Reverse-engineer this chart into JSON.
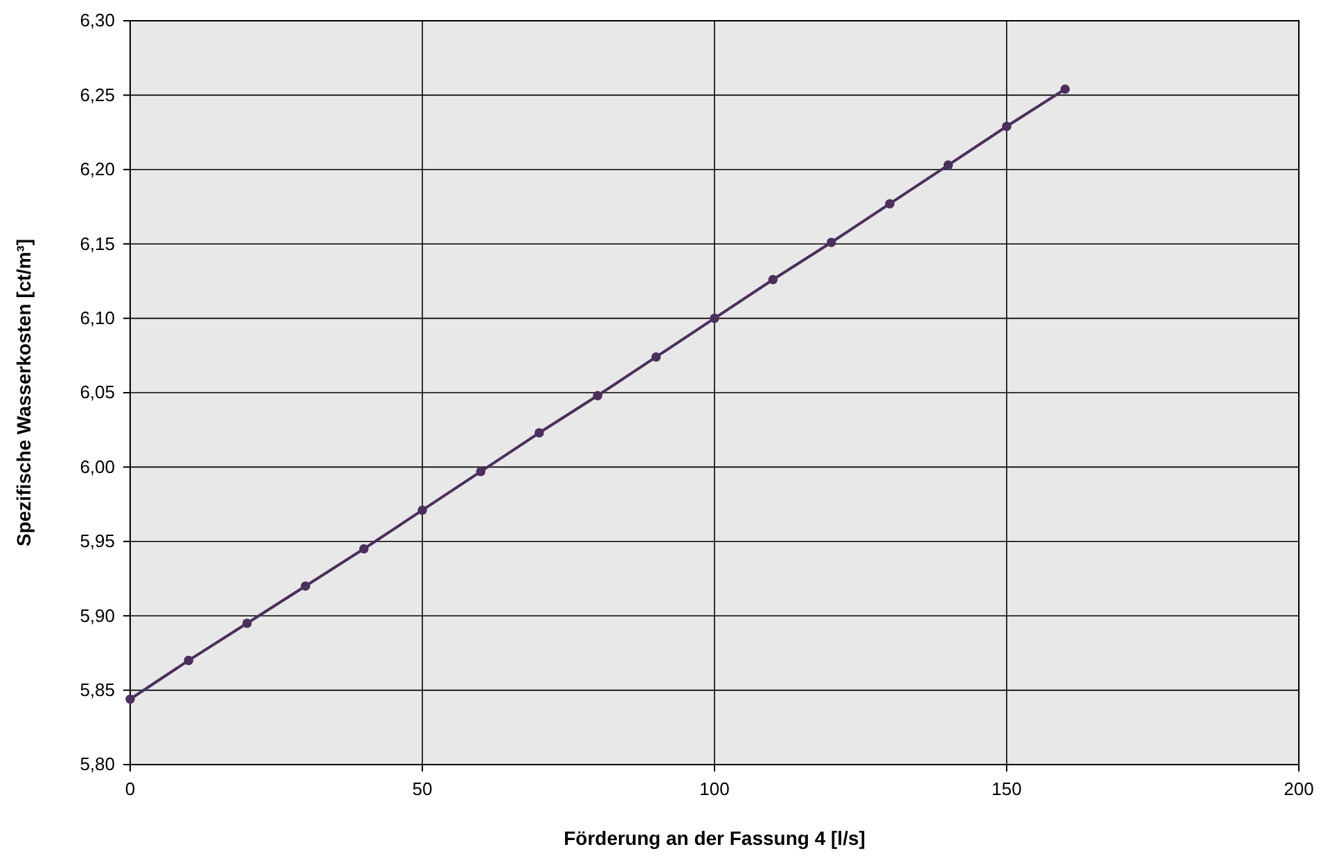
{
  "chart_data": {
    "type": "line",
    "xlabel": "Förderung an der Fassung 4 [l/s]",
    "ylabel": "Spezifische Wasserkosten [ct/m³]",
    "x": [
      0,
      10,
      20,
      30,
      40,
      50,
      60,
      70,
      80,
      90,
      100,
      110,
      120,
      130,
      140,
      150,
      160
    ],
    "series": [
      {
        "color": "#4b2f5c",
        "values": [
          5.844,
          5.87,
          5.895,
          5.92,
          5.945,
          5.971,
          5.997,
          6.023,
          6.048,
          6.074,
          6.1,
          6.126,
          6.151,
          6.177,
          6.203,
          6.229,
          6.254
        ]
      }
    ],
    "xlim": [
      0,
      200
    ],
    "xticks": [
      0,
      50,
      100,
      150,
      200
    ],
    "ylim": [
      5.8,
      6.3
    ],
    "yticks": [
      {
        "value": 5.8,
        "label": "5,80"
      },
      {
        "value": 5.85,
        "label": "5,85"
      },
      {
        "value": 5.9,
        "label": "5,90"
      },
      {
        "value": 5.95,
        "label": "5,95"
      },
      {
        "value": 6.0,
        "label": "6,00"
      },
      {
        "value": 6.05,
        "label": "6,05"
      },
      {
        "value": 6.1,
        "label": "6,10"
      },
      {
        "value": 6.15,
        "label": "6,15"
      },
      {
        "value": 6.2,
        "label": "6,20"
      },
      {
        "value": 6.25,
        "label": "6,25"
      },
      {
        "value": 6.3,
        "label": "6,30"
      }
    ],
    "grid": true,
    "marker": "circle",
    "line_style": "solid"
  }
}
